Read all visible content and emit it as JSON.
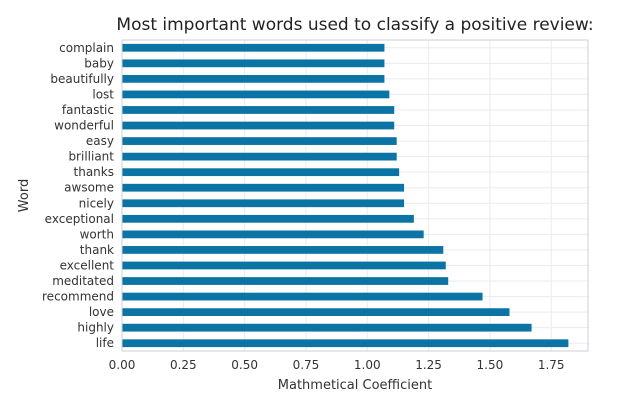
{
  "chart_data": {
    "type": "bar",
    "orientation": "horizontal",
    "title": "Most important words used to classify a positive review:",
    "xlabel": "Mathmetical Coefficient",
    "ylabel": "Word",
    "xlim": [
      0,
      1.9
    ],
    "xticks": [
      "0.00",
      "0.25",
      "0.50",
      "0.75",
      "1.00",
      "1.25",
      "1.50",
      "1.75"
    ],
    "xtick_values": [
      0,
      0.25,
      0.5,
      0.75,
      1.0,
      1.25,
      1.5,
      1.75
    ],
    "grid": true,
    "bar_color": "#0b74a4",
    "categories": [
      "complain",
      "baby",
      "beautifully",
      "lost",
      "fantastic",
      "wonderful",
      "easy",
      "brilliant",
      "thanks",
      "awsome",
      "nicely",
      "exceptional",
      "worth",
      "thank",
      "excellent",
      "meditated",
      "recommend",
      "love",
      "highly",
      "life"
    ],
    "values": [
      1.07,
      1.07,
      1.07,
      1.09,
      1.11,
      1.11,
      1.12,
      1.12,
      1.13,
      1.15,
      1.15,
      1.19,
      1.23,
      1.31,
      1.32,
      1.33,
      1.47,
      1.58,
      1.67,
      1.82
    ]
  }
}
